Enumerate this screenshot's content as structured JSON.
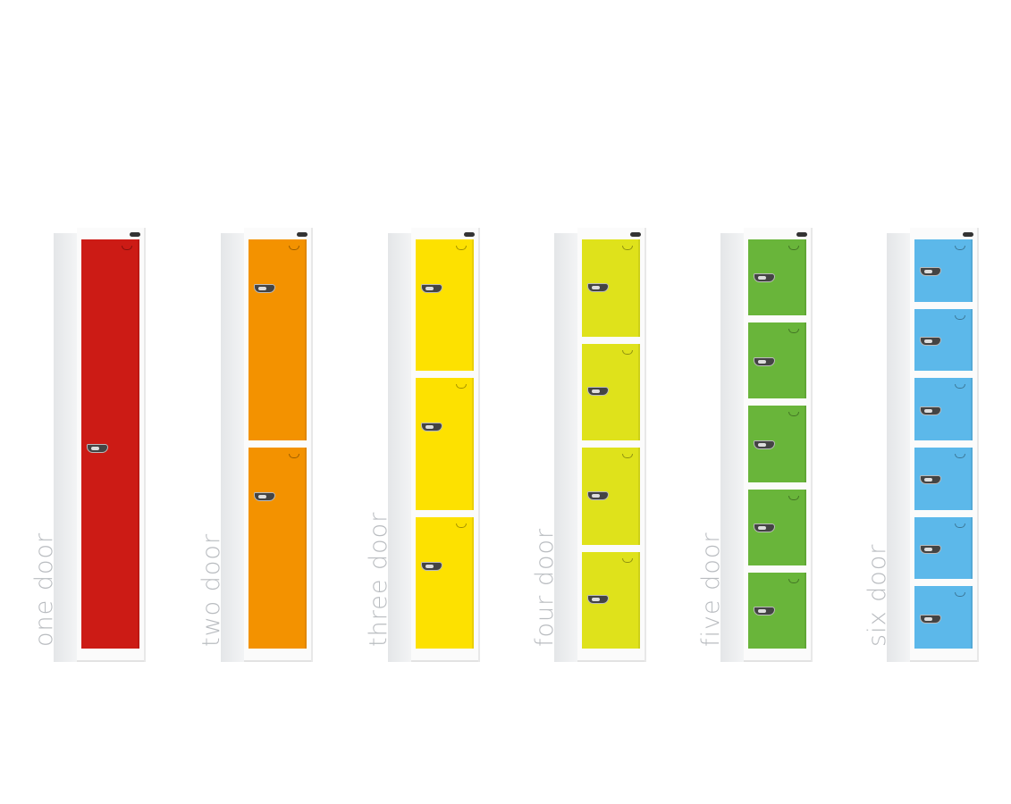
{
  "lockers": [
    {
      "label": "one door",
      "doors": 1,
      "color": "#cc1b15"
    },
    {
      "label": "two door",
      "doors": 2,
      "color": "#f39200"
    },
    {
      "label": "three door",
      "doors": 3,
      "color": "#fde100"
    },
    {
      "label": "four door",
      "doors": 4,
      "color": "#dfe21b"
    },
    {
      "label": "five door",
      "doors": 5,
      "color": "#69b53a"
    },
    {
      "label": "six door",
      "doors": 6,
      "color": "#5cb8ea"
    }
  ]
}
